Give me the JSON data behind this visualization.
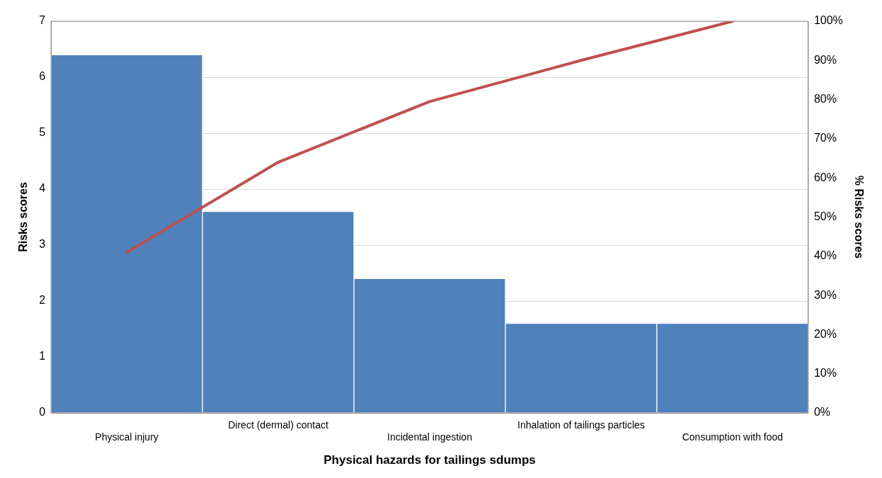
{
  "chart_data": {
    "type": "bar",
    "xlabel": "Physical hazards for tailings sdumps",
    "ylabel": "Risks scores",
    "y2label": "% Risks scores",
    "categories": [
      "Physical injury",
      "Direct (dermal) contact",
      "Incidental ingestion",
      "Inhalation of tailings particles",
      "Consumption with food"
    ],
    "series": [
      {
        "color": "#4f81bd",
        "values": [
          6.4,
          3.6,
          2.4,
          1.6,
          1.6
        ]
      },
      {
        "type": "line",
        "axis": "y2",
        "color": "#c0504d",
        "values": [
          41,
          64,
          79.5,
          90,
          100
        ]
      }
    ],
    "ylim": [
      0,
      7
    ],
    "yticks": [
      0,
      1,
      2,
      3,
      4,
      5,
      6,
      7
    ],
    "y2lim": [
      0,
      100
    ],
    "y2ticks": [
      {
        "value": 0,
        "label": "0%"
      },
      {
        "value": 10,
        "label": "10%"
      },
      {
        "value": 20,
        "label": "20%"
      },
      {
        "value": 30,
        "label": "30%"
      },
      {
        "value": 40,
        "label": "40%"
      },
      {
        "value": 50,
        "label": "50%"
      },
      {
        "value": 60,
        "label": "60%"
      },
      {
        "value": 70,
        "label": "70%"
      },
      {
        "value": 80,
        "label": "80%"
      },
      {
        "value": 90,
        "label": "90%"
      },
      {
        "value": 100,
        "label": "100%"
      }
    ],
    "grid": "y",
    "legend": false,
    "marker": "none",
    "line_style": "solid"
  }
}
